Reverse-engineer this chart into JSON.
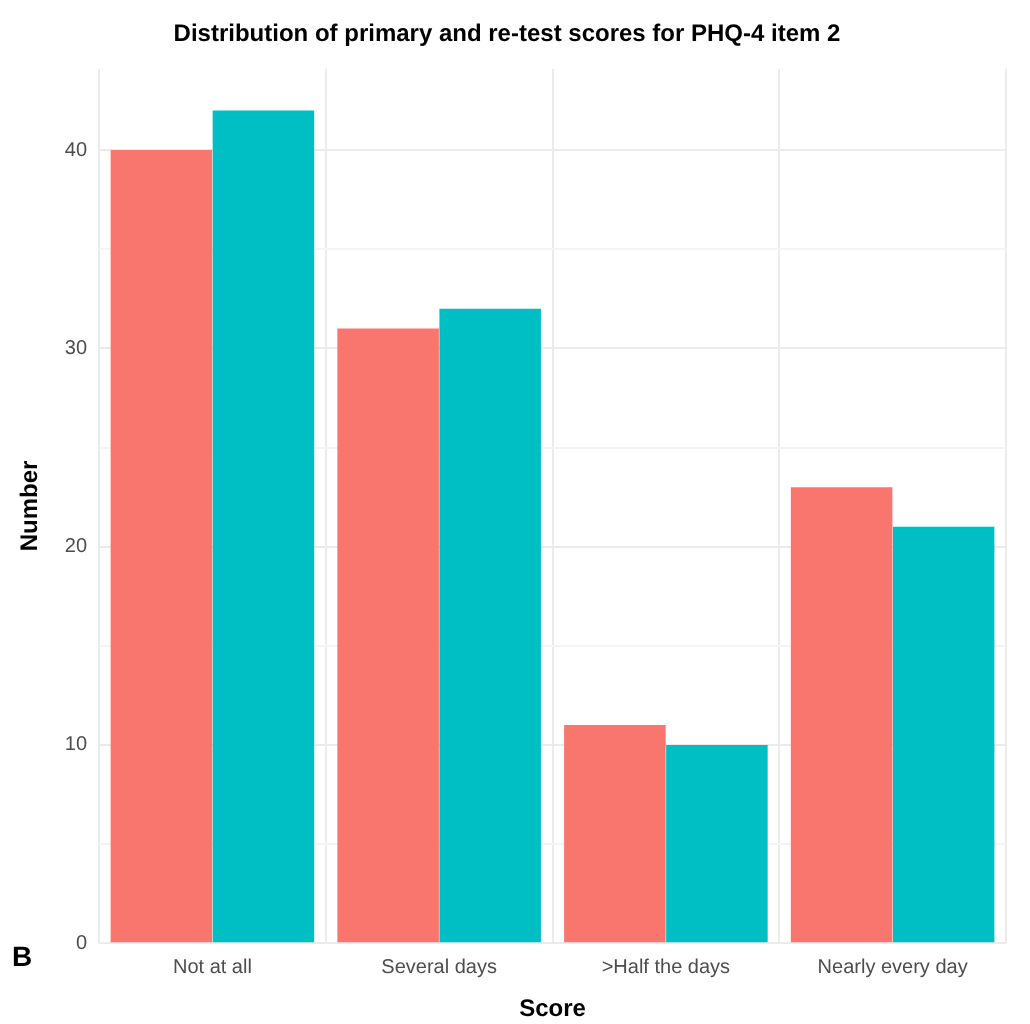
{
  "chart_data": {
    "type": "bar",
    "title": "Distribution of primary and re-test scores for PHQ-4 item 2",
    "xlabel": "Score",
    "ylabel": "Number",
    "categories": [
      "Not at all",
      "Several days",
      ">Half the days",
      "Nearly every day"
    ],
    "series": [
      {
        "color": "#f8766d",
        "values": [
          40,
          31,
          11,
          23
        ]
      },
      {
        "color": "#00bfc4",
        "values": [
          42,
          32,
          10,
          21
        ]
      }
    ],
    "ylim": [
      0,
      44.1
    ],
    "yticks": [
      0,
      {
        "value": 5,
        "label": null
      },
      10,
      {
        "value": 15,
        "label": null
      },
      20,
      {
        "value": 25,
        "label": null
      },
      30,
      {
        "value": 35,
        "label": null
      },
      40
    ],
    "grid": true,
    "legend": false,
    "annotations": [
      "B"
    ]
  }
}
